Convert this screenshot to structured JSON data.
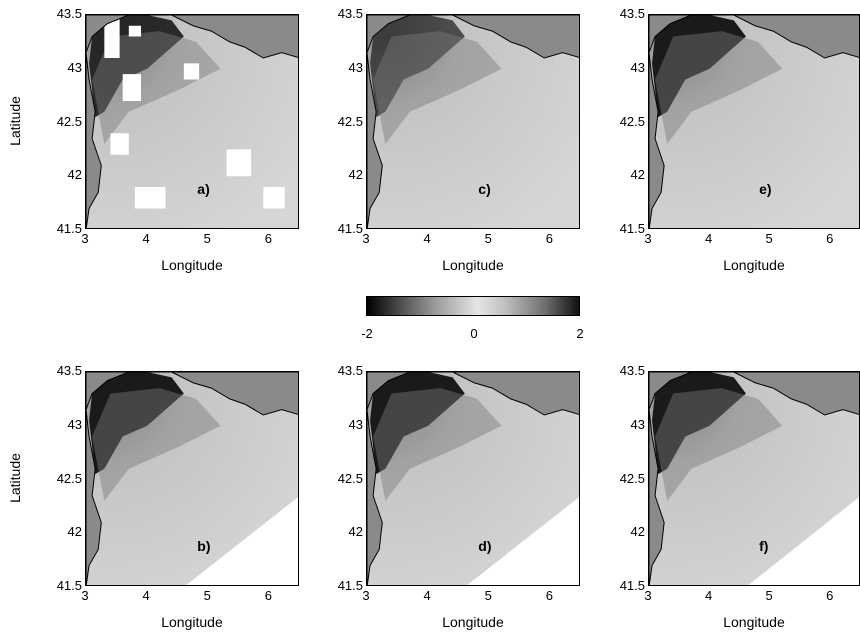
{
  "chart_data": [
    {
      "type": "heatmap",
      "panel_label": "a)",
      "xlabel": "Longitude",
      "ylabel": "Latitude",
      "xlim": [
        3,
        6.5
      ],
      "ylim": [
        41.5,
        43.5
      ],
      "xticks": [
        "3",
        "4",
        "5",
        "6"
      ],
      "yticks": [
        "43.5",
        "43",
        "42.5",
        "42",
        "41.5"
      ]
    },
    {
      "type": "heatmap",
      "panel_label": "c)",
      "xlabel": "Longitude",
      "ylabel": "",
      "xlim": [
        3,
        6.5
      ],
      "ylim": [
        41.5,
        43.5
      ],
      "xticks": [
        "3",
        "4",
        "5",
        "6"
      ],
      "yticks": [
        "43.5",
        "43",
        "42.5",
        "42",
        "41.5"
      ]
    },
    {
      "type": "heatmap",
      "panel_label": "e)",
      "xlabel": "Longitude",
      "ylabel": "",
      "xlim": [
        3,
        6.5
      ],
      "ylim": [
        41.5,
        43.5
      ],
      "xticks": [
        "3",
        "4",
        "5",
        "6"
      ],
      "yticks": [
        "43.5",
        "43",
        "42.5",
        "42",
        "41.5"
      ]
    },
    {
      "type": "heatmap",
      "panel_label": "b)",
      "xlabel": "Longitude",
      "ylabel": "Latitude",
      "xlim": [
        3,
        6.5
      ],
      "ylim": [
        41.5,
        43.5
      ],
      "xticks": [
        "3",
        "4",
        "5",
        "6"
      ],
      "yticks": [
        "43.5",
        "43",
        "42.5",
        "42",
        "41.5"
      ]
    },
    {
      "type": "heatmap",
      "panel_label": "d)",
      "xlabel": "Longitude",
      "ylabel": "",
      "xlim": [
        3,
        6.5
      ],
      "ylim": [
        41.5,
        43.5
      ],
      "xticks": [
        "3",
        "4",
        "5",
        "6"
      ],
      "yticks": [
        "43.5",
        "43",
        "42.5",
        "42",
        "41.5"
      ]
    },
    {
      "type": "heatmap",
      "panel_label": "f)",
      "xlabel": "Longitude",
      "ylabel": "",
      "xlim": [
        3,
        6.5
      ],
      "ylim": [
        41.5,
        43.5
      ],
      "xticks": [
        "3",
        "4",
        "5",
        "6"
      ],
      "yticks": [
        "43.5",
        "43",
        "42.5",
        "42",
        "41.5"
      ]
    }
  ],
  "colorbar": {
    "ticks": [
      "-2",
      "0",
      "2"
    ],
    "range": [
      -2,
      2
    ],
    "colormap": "black-white-black"
  }
}
